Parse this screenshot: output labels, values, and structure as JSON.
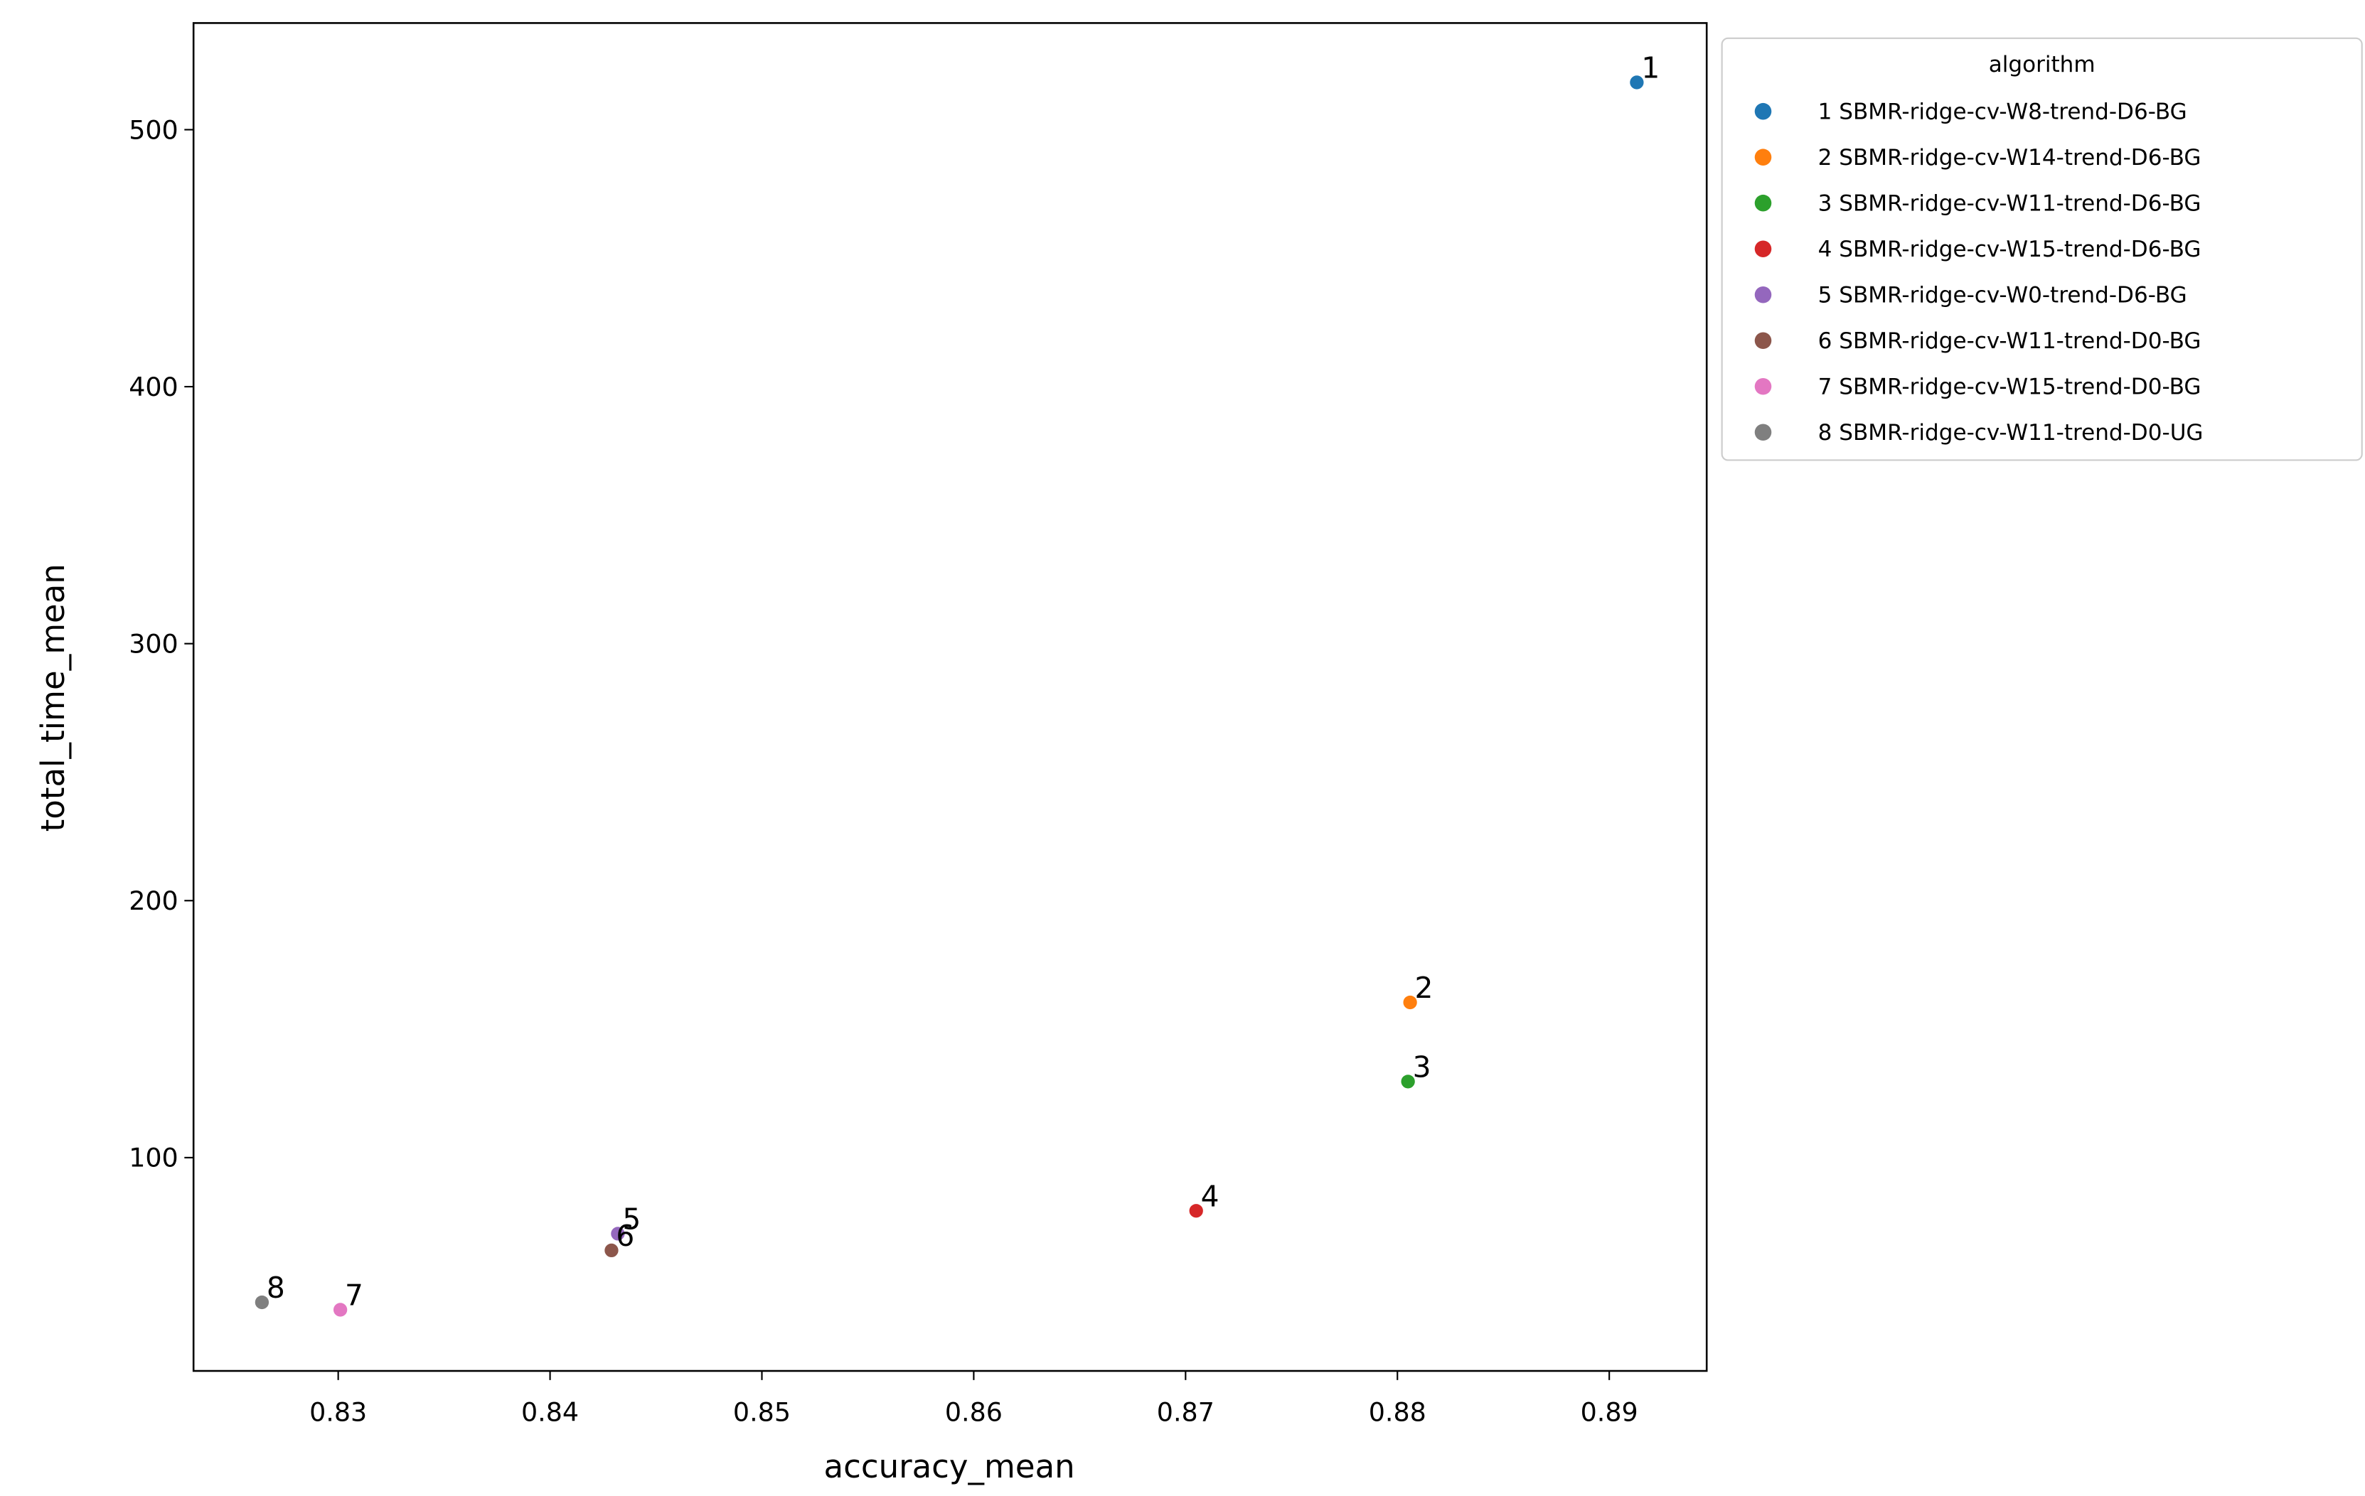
{
  "chart_data": {
    "type": "scatter",
    "x_label": "accuracy_mean",
    "y_label": "total_time_mean",
    "legend_title": "algorithm",
    "legend": "outside right",
    "xlim": [
      0.82317,
      0.8946
    ],
    "ylim": [
      17,
      541.5
    ],
    "xticks": [
      0.83,
      0.84,
      0.85,
      0.86,
      0.87,
      0.88,
      0.89
    ],
    "yticks": [
      100,
      200,
      300,
      400,
      500
    ],
    "series": [
      {
        "name": "1 SBMR-ridge-cv-W8-trend-D6-BG",
        "color": "#1f77b4",
        "x": [
          0.8913
        ],
        "values": [
          518.4
        ],
        "point_labels": [
          "1"
        ]
      },
      {
        "name": "2 SBMR-ridge-cv-W14-trend-D6-BG",
        "color": "#ff7f0e",
        "x": [
          0.8806
        ],
        "values": [
          160.4
        ],
        "point_labels": [
          "2"
        ]
      },
      {
        "name": "3 SBMR-ridge-cv-W11-trend-D6-BG",
        "color": "#2ca02c",
        "x": [
          0.8805
        ],
        "values": [
          129.6
        ],
        "point_labels": [
          "3"
        ]
      },
      {
        "name": "4 SBMR-ridge-cv-W15-trend-D6-BG",
        "color": "#d62728",
        "x": [
          0.8705
        ],
        "values": [
          79.3
        ],
        "point_labels": [
          "4"
        ]
      },
      {
        "name": "5 SBMR-ridge-cv-W0-trend-D6-BG",
        "color": "#9467bd",
        "x": [
          0.8432
        ],
        "values": [
          70.4
        ],
        "point_labels": [
          "5"
        ]
      },
      {
        "name": "6 SBMR-ridge-cv-W11-trend-D0-BG",
        "color": "#8c564b",
        "x": [
          0.8429
        ],
        "values": [
          63.9
        ],
        "point_labels": [
          "6"
        ]
      },
      {
        "name": "7 SBMR-ridge-cv-W15-trend-D0-BG",
        "color": "#e377c2",
        "x": [
          0.8301
        ],
        "values": [
          40.8
        ],
        "point_labels": [
          "7"
        ]
      },
      {
        "name": "8 SBMR-ridge-cv-W11-trend-D0-UG",
        "color": "#7f7f7f",
        "x": [
          0.8264
        ],
        "values": [
          43.7
        ],
        "point_labels": [
          "8"
        ]
      }
    ]
  }
}
